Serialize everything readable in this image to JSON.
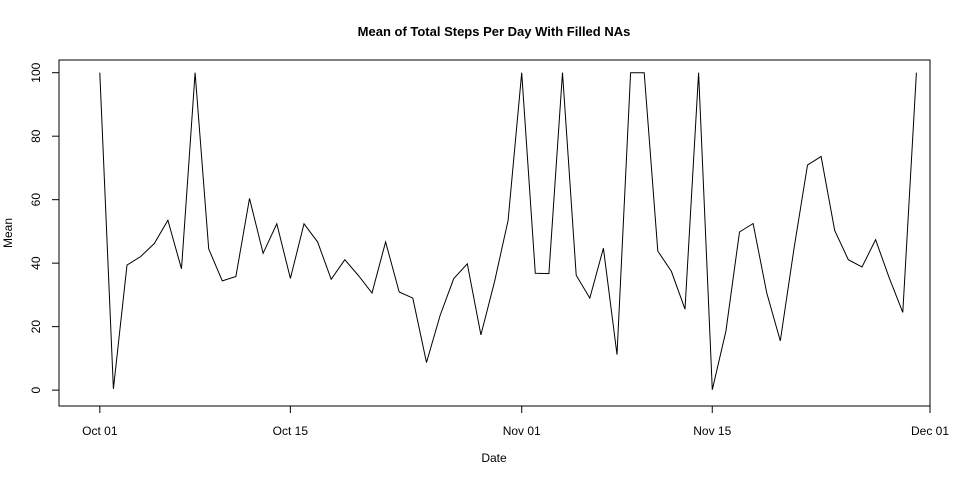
{
  "chart_data": {
    "type": "line",
    "title": "Mean of Total Steps Per Day With Filled NAs",
    "xlabel": "Date",
    "ylabel": "Mean",
    "x_tick_labels": [
      "Oct 01",
      "Oct 15",
      "Nov 01",
      "Nov 15",
      "Dec 01"
    ],
    "x_ticks": [
      "2012-10-01",
      "2012-10-15",
      "2012-11-01",
      "2012-11-15",
      "2012-12-01"
    ],
    "xlim": [
      "2012-09-28",
      "2012-12-01"
    ],
    "y_tick_labels": [
      "0",
      "20",
      "40",
      "60",
      "80",
      "100"
    ],
    "y_ticks": [
      0,
      20,
      40,
      60,
      80,
      100
    ],
    "ylim": [
      -5,
      104
    ],
    "grid": false,
    "series": [
      {
        "color": "#000000",
        "x": [
          "2012-10-01",
          "2012-10-02",
          "2012-10-03",
          "2012-10-04",
          "2012-10-05",
          "2012-10-06",
          "2012-10-07",
          "2012-10-08",
          "2012-10-09",
          "2012-10-10",
          "2012-10-11",
          "2012-10-12",
          "2012-10-13",
          "2012-10-14",
          "2012-10-15",
          "2012-10-16",
          "2012-10-17",
          "2012-10-18",
          "2012-10-19",
          "2012-10-20",
          "2012-10-21",
          "2012-10-22",
          "2012-10-23",
          "2012-10-24",
          "2012-10-25",
          "2012-10-26",
          "2012-10-27",
          "2012-10-28",
          "2012-10-29",
          "2012-10-30",
          "2012-10-31",
          "2012-11-01",
          "2012-11-02",
          "2012-11-03",
          "2012-11-04",
          "2012-11-05",
          "2012-11-06",
          "2012-11-07",
          "2012-11-08",
          "2012-11-09",
          "2012-11-10",
          "2012-11-11",
          "2012-11-12",
          "2012-11-13",
          "2012-11-14",
          "2012-11-15",
          "2012-11-16",
          "2012-11-17",
          "2012-11-18",
          "2012-11-19",
          "2012-11-20",
          "2012-11-21",
          "2012-11-22",
          "2012-11-23",
          "2012-11-24",
          "2012-11-25",
          "2012-11-26",
          "2012-11-27",
          "2012-11-28",
          "2012-11-29",
          "2012-11-30"
        ],
        "y": [
          100,
          0.4,
          39.4,
          42.1,
          46.2,
          53.5,
          38.2,
          100,
          44.5,
          34.4,
          35.8,
          60.4,
          43.1,
          52.4,
          35.2,
          52.4,
          46.7,
          34.9,
          41.1,
          36.1,
          30.6,
          46.7,
          30.9,
          29.0,
          8.7,
          23.5,
          35.1,
          39.8,
          17.4,
          34.1,
          53.5,
          100,
          36.8,
          36.7,
          100,
          36.2,
          29.0,
          44.7,
          11.2,
          100,
          100,
          43.8,
          37.4,
          25.5,
          100,
          0.1,
          18.6,
          49.8,
          52.5,
          30.7,
          15.5,
          44.4,
          70.9,
          73.6,
          50.3,
          41.1,
          38.8,
          47.4,
          35.4,
          24.5,
          100
        ]
      }
    ]
  }
}
